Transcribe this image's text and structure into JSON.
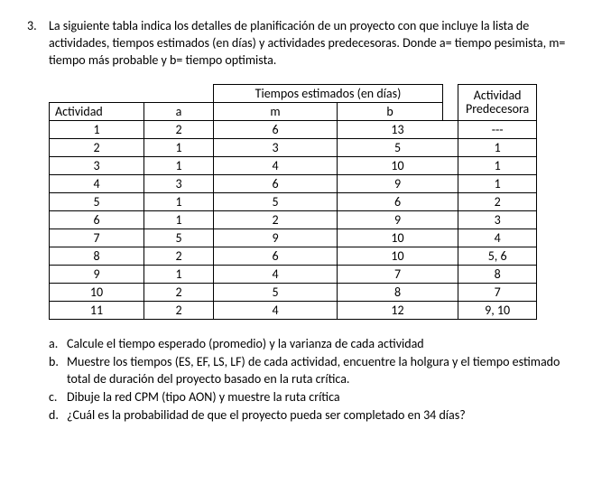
{
  "problem": {
    "number": "3.",
    "text": "La siguiente tabla indica los detalles de planificación de un proyecto con que incluye la lista de actividades, tiempos estimados (en días) y actividades predecesoras.  Donde a= tiempo pesimista, m= tiempo más probable y b= tiempo optimista."
  },
  "table": {
    "header_group1": "Tiempos estimados (en días)",
    "header_group2_line1": "Actividad",
    "header_group2_line2": "Predecesora",
    "col_activity": "Actividad",
    "col_a": "a",
    "col_m": "m",
    "col_b": "b",
    "rows": [
      {
        "act": "1",
        "a": "2",
        "m": "6",
        "b": "13",
        "pred": "---"
      },
      {
        "act": "2",
        "a": "1",
        "m": "3",
        "b": "5",
        "pred": "1"
      },
      {
        "act": "3",
        "a": "1",
        "m": "4",
        "b": "10",
        "pred": "1"
      },
      {
        "act": "4",
        "a": "3",
        "m": "6",
        "b": "9",
        "pred": "1"
      },
      {
        "act": "5",
        "a": "1",
        "m": "5",
        "b": "6",
        "pred": "2"
      },
      {
        "act": "6",
        "a": "1",
        "m": "2",
        "b": "9",
        "pred": "3"
      },
      {
        "act": "7",
        "a": "5",
        "m": "9",
        "b": "10",
        "pred": "4"
      },
      {
        "act": "8",
        "a": "2",
        "m": "6",
        "b": "10",
        "pred": "5, 6"
      },
      {
        "act": "9",
        "a": "1",
        "m": "4",
        "b": "7",
        "pred": "8"
      },
      {
        "act": "10",
        "a": "2",
        "m": "5",
        "b": "8",
        "pred": "7"
      },
      {
        "act": "11",
        "a": "2",
        "m": "4",
        "b": "12",
        "pred": "9, 10"
      }
    ]
  },
  "subitems": {
    "a": {
      "letter": "a.",
      "text": "Calcule el tiempo esperado (promedio) y la varianza de cada actividad"
    },
    "b": {
      "letter": "b.",
      "text": "Muestre los tiempos (ES, EF, LS, LF) de cada actividad, encuentre la holgura y el tiempo estimado total de duración del proyecto basado en la ruta crítica."
    },
    "c": {
      "letter": "c.",
      "text": "Dibuje la red CPM (tipo AON) y muestre la ruta crítica"
    },
    "d": {
      "letter": "d.",
      "text": "¿Cuál es la probabilidad de que el proyecto pueda ser completado en 34 días?"
    }
  }
}
